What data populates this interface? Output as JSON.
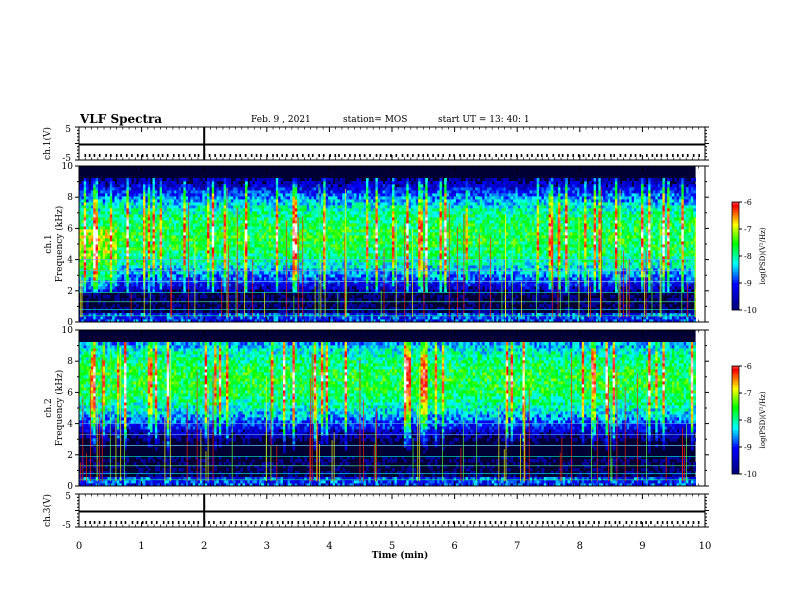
{
  "header": {
    "title": "VLF Spectra",
    "date": "Feb. 9 , 2021",
    "station": "station= MOS",
    "start": "start UT = 13: 40: 1"
  },
  "chart_data": [
    {
      "type": "line",
      "name": "ch1-voltage",
      "ylabel": "ch.1(V)",
      "ylim": [
        -5,
        5
      ],
      "yticks": [
        "5",
        "-5"
      ],
      "xlim": [
        0,
        10
      ],
      "baseline_value": 0
    },
    {
      "type": "heatmap",
      "name": "ch1-spectrogram",
      "ylabel": "ch.1\nFrequency (kHz)",
      "ylabel_channel": "ch.1",
      "ylabel_freq": "Frequency (kHz)",
      "xlim": [
        0,
        9.85
      ],
      "ylim": [
        0,
        10
      ],
      "yticks": [
        "0",
        "2",
        "4",
        "6",
        "8",
        "10"
      ],
      "colorbar": {
        "min": -10,
        "max": -6,
        "ticks": [
          "-6",
          "-7",
          "-8",
          "-9",
          "-10"
        ],
        "label": "log(PSD)(V²/Hz)"
      },
      "band_center_khz": 5.5,
      "strong_low_freq_burst_min": [
        0,
        0.6
      ]
    },
    {
      "type": "heatmap",
      "name": "ch2-spectrogram",
      "ylabel": "ch.2\nFrequency (kHz)",
      "ylabel_channel": "ch.2",
      "ylabel_freq": "Frequency (kHz)",
      "xlim": [
        0,
        9.85
      ],
      "ylim": [
        0,
        10
      ],
      "yticks": [
        "0",
        "2",
        "4",
        "6",
        "8",
        "10"
      ],
      "colorbar": {
        "min": -10,
        "max": -6,
        "ticks": [
          "-6",
          "-7",
          "-8",
          "-9",
          "-10"
        ],
        "label": "log(PSD)(V²/Hz)"
      },
      "band_center_khz": 6.8
    },
    {
      "type": "line",
      "name": "ch3-voltage",
      "ylabel": "ch.3(V)",
      "ylim": [
        -5,
        5
      ],
      "yticks": [
        "5",
        "-5"
      ],
      "xlim": [
        0,
        10
      ],
      "baseline_value": 0
    }
  ],
  "xaxis": {
    "xlabel": "Time (min)",
    "xlim": [
      0,
      10
    ],
    "xticks": [
      "0",
      "1",
      "2",
      "3",
      "4",
      "5",
      "6",
      "7",
      "8",
      "9",
      "10"
    ]
  },
  "colors": {
    "colormap": [
      "#000000",
      "#00007f",
      "#0000ff",
      "#00ffff",
      "#00ff00",
      "#ffff00",
      "#ff0000",
      "#ffffff"
    ]
  }
}
